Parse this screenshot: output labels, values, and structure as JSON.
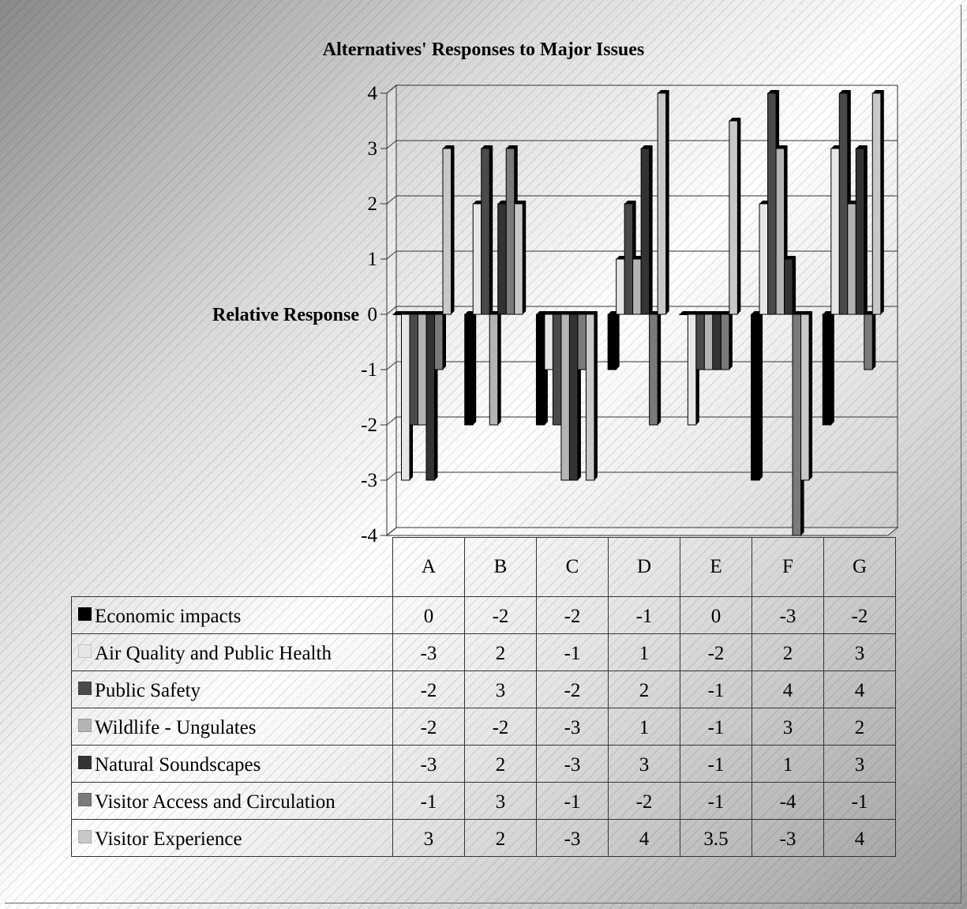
{
  "chart_data": {
    "type": "bar",
    "title": "Alternatives' Responses to Major Issues",
    "ylabel": "Relative Response",
    "ylim": [
      -4,
      4
    ],
    "yticks": [
      4,
      3,
      2,
      1,
      0,
      -1,
      -2,
      -3,
      -4
    ],
    "categories": [
      "A",
      "B",
      "C",
      "D",
      "E",
      "F",
      "G"
    ],
    "series": [
      {
        "name": "Economic impacts",
        "color": "#000000",
        "values": [
          0,
          -2,
          -2,
          -1,
          0,
          -3,
          -2
        ],
        "labels": [
          "0",
          "-2",
          "-2",
          "-1",
          "0",
          "-3",
          "-2"
        ]
      },
      {
        "name": "Air Quality and Public Health",
        "color": "#e6e6e6",
        "values": [
          -3,
          2,
          -1,
          1,
          -2,
          2,
          3
        ],
        "labels": [
          "-3",
          "2",
          "-1",
          "1",
          "-2",
          "2",
          "3"
        ]
      },
      {
        "name": "Public Safety",
        "color": "#4a4a4a",
        "values": [
          -2,
          3,
          -2,
          2,
          -1,
          4,
          4
        ],
        "labels": [
          "-2",
          "3",
          "-2",
          "2",
          "-1",
          "4",
          "4"
        ]
      },
      {
        "name": "Wildlife - Ungulates",
        "color": "#b4b4b4",
        "values": [
          -2,
          -2,
          -3,
          1,
          -1,
          3,
          2
        ],
        "labels": [
          "-2",
          "-2",
          "-3",
          "1",
          "-1",
          "3",
          "2"
        ]
      },
      {
        "name": "Natural Soundscapes",
        "color": "#333333",
        "values": [
          -3,
          2,
          -3,
          3,
          -1,
          1,
          3
        ],
        "labels": [
          "-3",
          "2",
          "-3",
          "3",
          "-1",
          "1",
          "3"
        ]
      },
      {
        "name": "Visitor Access and Circulation",
        "color": "#7a7a7a",
        "values": [
          -1,
          3,
          -1,
          -2,
          -1,
          -4,
          -1
        ],
        "labels": [
          "-1",
          "3",
          "-1",
          "-2",
          "-1",
          "-4",
          "-1"
        ]
      },
      {
        "name": "Visitor Experience",
        "color": "#c8c8c8",
        "values": [
          3,
          2,
          -3,
          4,
          3.5,
          -3,
          4
        ],
        "labels": [
          "3",
          "2",
          "-3",
          "4",
          "3.5",
          "-3",
          "4"
        ]
      }
    ]
  }
}
